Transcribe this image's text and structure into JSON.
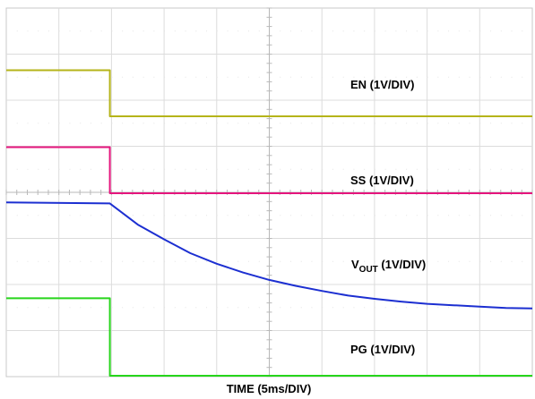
{
  "chart_data": {
    "type": "line",
    "grid": true,
    "x": {
      "label": "TIME (5ms/DIV)",
      "range_div": [
        0,
        10
      ]
    },
    "y": {
      "range_div": [
        0,
        8
      ]
    },
    "series": [
      {
        "name": "EN (1V/DIV)",
        "color": "#b5b41a",
        "points_div": [
          [
            0,
            6.65
          ],
          [
            1.97,
            6.65
          ],
          [
            1.97,
            5.65
          ],
          [
            10,
            5.65
          ]
        ]
      },
      {
        "name": "SS (1V/DIV)",
        "color": "#e5157d",
        "points_div": [
          [
            0,
            4.98
          ],
          [
            1.97,
            4.98
          ],
          [
            1.97,
            3.98
          ],
          [
            10,
            3.98
          ]
        ]
      },
      {
        "name_main": "V",
        "name_sub": "OUT",
        "name_rest": " (1V/DIV)",
        "color": "#1c2fd1",
        "points_div": [
          [
            0,
            3.78
          ],
          [
            1.97,
            3.76
          ],
          [
            2.5,
            3.3
          ],
          [
            3,
            2.98
          ],
          [
            3.5,
            2.68
          ],
          [
            4,
            2.45
          ],
          [
            4.5,
            2.26
          ],
          [
            5,
            2.1
          ],
          [
            5.5,
            1.97
          ],
          [
            6,
            1.86
          ],
          [
            6.5,
            1.76
          ],
          [
            7,
            1.69
          ],
          [
            7.5,
            1.63
          ],
          [
            8,
            1.58
          ],
          [
            8.5,
            1.55
          ],
          [
            9,
            1.52
          ],
          [
            9.5,
            1.49
          ],
          [
            10,
            1.48
          ]
        ]
      },
      {
        "name": "PG (1V/DIV)",
        "color": "#27d51b",
        "points_div": [
          [
            0,
            1.7
          ],
          [
            1.97,
            1.7
          ],
          [
            1.97,
            0.02
          ],
          [
            10,
            0.02
          ]
        ]
      }
    ]
  }
}
